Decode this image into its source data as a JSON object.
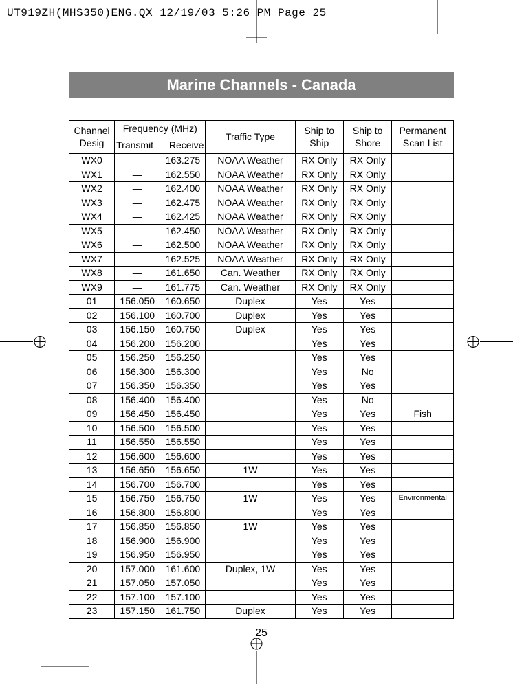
{
  "print_header": "UT919ZH(MHS350)ENG.QX  12/19/03  5:26 PM  Page 25",
  "title": "Marine Channels - Canada",
  "page_number": "25",
  "table": {
    "headers": {
      "channel_desig_l1": "Channel",
      "channel_desig_l2": "Desig",
      "freq_header": "Frequency (MHz)",
      "transmit": "Transmit",
      "receive": "Receive",
      "traffic_type": "Traffic Type",
      "ship_to_ship_l1": "Ship to",
      "ship_to_ship_l2": "Ship",
      "ship_to_shore_l1": "Ship to",
      "ship_to_shore_l2": "Shore",
      "scan_list_l1": "Permanent",
      "scan_list_l2": "Scan List"
    },
    "rows": [
      {
        "desig": "WX0",
        "tx": "—",
        "rx": "163.275",
        "traffic": "NOAA Weather",
        "ship": "RX Only",
        "shore": "RX Only",
        "scan": ""
      },
      {
        "desig": "WX1",
        "tx": "—",
        "rx": "162.550",
        "traffic": "NOAA Weather",
        "ship": "RX Only",
        "shore": "RX Only",
        "scan": ""
      },
      {
        "desig": "WX2",
        "tx": "—",
        "rx": "162.400",
        "traffic": "NOAA Weather",
        "ship": "RX Only",
        "shore": "RX Only",
        "scan": ""
      },
      {
        "desig": "WX3",
        "tx": "—",
        "rx": "162.475",
        "traffic": "NOAA Weather",
        "ship": "RX Only",
        "shore": "RX Only",
        "scan": ""
      },
      {
        "desig": "WX4",
        "tx": "—",
        "rx": "162.425",
        "traffic": "NOAA Weather",
        "ship": "RX Only",
        "shore": "RX Only",
        "scan": ""
      },
      {
        "desig": "WX5",
        "tx": "—",
        "rx": "162.450",
        "traffic": "NOAA Weather",
        "ship": "RX Only",
        "shore": "RX Only",
        "scan": ""
      },
      {
        "desig": "WX6",
        "tx": "—",
        "rx": "162.500",
        "traffic": "NOAA Weather",
        "ship": "RX Only",
        "shore": "RX Only",
        "scan": ""
      },
      {
        "desig": "WX7",
        "tx": "—",
        "rx": "162.525",
        "traffic": "NOAA Weather",
        "ship": "RX Only",
        "shore": "RX Only",
        "scan": ""
      },
      {
        "desig": "WX8",
        "tx": "—",
        "rx": "161.650",
        "traffic": "Can. Weather",
        "ship": "RX Only",
        "shore": "RX Only",
        "scan": ""
      },
      {
        "desig": "WX9",
        "tx": "—",
        "rx": "161.775",
        "traffic": "Can. Weather",
        "ship": "RX Only",
        "shore": "RX Only",
        "scan": ""
      },
      {
        "desig": "01",
        "tx": "156.050",
        "rx": "160.650",
        "traffic": "Duplex",
        "ship": "Yes",
        "shore": "Yes",
        "scan": ""
      },
      {
        "desig": "02",
        "tx": "156.100",
        "rx": "160.700",
        "traffic": "Duplex",
        "ship": "Yes",
        "shore": "Yes",
        "scan": ""
      },
      {
        "desig": "03",
        "tx": "156.150",
        "rx": "160.750",
        "traffic": "Duplex",
        "ship": "Yes",
        "shore": "Yes",
        "scan": ""
      },
      {
        "desig": "04",
        "tx": "156.200",
        "rx": "156.200",
        "traffic": "",
        "ship": "Yes",
        "shore": "Yes",
        "scan": ""
      },
      {
        "desig": "05",
        "tx": "156.250",
        "rx": "156.250",
        "traffic": "",
        "ship": "Yes",
        "shore": "Yes",
        "scan": ""
      },
      {
        "desig": "06",
        "tx": "156.300",
        "rx": "156.300",
        "traffic": "",
        "ship": "Yes",
        "shore": "No",
        "scan": ""
      },
      {
        "desig": "07",
        "tx": "156.350",
        "rx": "156.350",
        "traffic": "",
        "ship": "Yes",
        "shore": "Yes",
        "scan": ""
      },
      {
        "desig": "08",
        "tx": "156.400",
        "rx": "156.400",
        "traffic": "",
        "ship": "Yes",
        "shore": "No",
        "scan": ""
      },
      {
        "desig": "09",
        "tx": "156.450",
        "rx": "156.450",
        "traffic": "",
        "ship": "Yes",
        "shore": "Yes",
        "scan": "Fish"
      },
      {
        "desig": "10",
        "tx": "156.500",
        "rx": "156.500",
        "traffic": "",
        "ship": "Yes",
        "shore": "Yes",
        "scan": ""
      },
      {
        "desig": "11",
        "tx": "156.550",
        "rx": "156.550",
        "traffic": "",
        "ship": "Yes",
        "shore": "Yes",
        "scan": ""
      },
      {
        "desig": "12",
        "tx": "156.600",
        "rx": "156.600",
        "traffic": "",
        "ship": "Yes",
        "shore": "Yes",
        "scan": ""
      },
      {
        "desig": "13",
        "tx": "156.650",
        "rx": "156.650",
        "traffic": "1W",
        "ship": "Yes",
        "shore": "Yes",
        "scan": ""
      },
      {
        "desig": "14",
        "tx": "156.700",
        "rx": "156.700",
        "traffic": "",
        "ship": "Yes",
        "shore": "Yes",
        "scan": ""
      },
      {
        "desig": "15",
        "tx": "156.750",
        "rx": "156.750",
        "traffic": "1W",
        "ship": "Yes",
        "shore": "Yes",
        "scan": "Environmental",
        "scan_small": true
      },
      {
        "desig": "16",
        "tx": "156.800",
        "rx": "156.800",
        "traffic": "",
        "ship": "Yes",
        "shore": "Yes",
        "scan": ""
      },
      {
        "desig": "17",
        "tx": "156.850",
        "rx": "156.850",
        "traffic": "1W",
        "ship": "Yes",
        "shore": "Yes",
        "scan": ""
      },
      {
        "desig": "18",
        "tx": "156.900",
        "rx": "156.900",
        "traffic": "",
        "ship": "Yes",
        "shore": "Yes",
        "scan": ""
      },
      {
        "desig": "19",
        "tx": "156.950",
        "rx": "156.950",
        "traffic": "",
        "ship": "Yes",
        "shore": "Yes",
        "scan": ""
      },
      {
        "desig": "20",
        "tx": "157.000",
        "rx": "161.600",
        "traffic": "Duplex, 1W",
        "ship": "Yes",
        "shore": "Yes",
        "scan": ""
      },
      {
        "desig": "21",
        "tx": "157.050",
        "rx": "157.050",
        "traffic": "",
        "ship": "Yes",
        "shore": "Yes",
        "scan": ""
      },
      {
        "desig": "22",
        "tx": "157.100",
        "rx": "157.100",
        "traffic": "",
        "ship": "Yes",
        "shore": "Yes",
        "scan": ""
      },
      {
        "desig": "23",
        "tx": "157.150",
        "rx": "161.750",
        "traffic": "Duplex",
        "ship": "Yes",
        "shore": "Yes",
        "scan": ""
      }
    ]
  }
}
